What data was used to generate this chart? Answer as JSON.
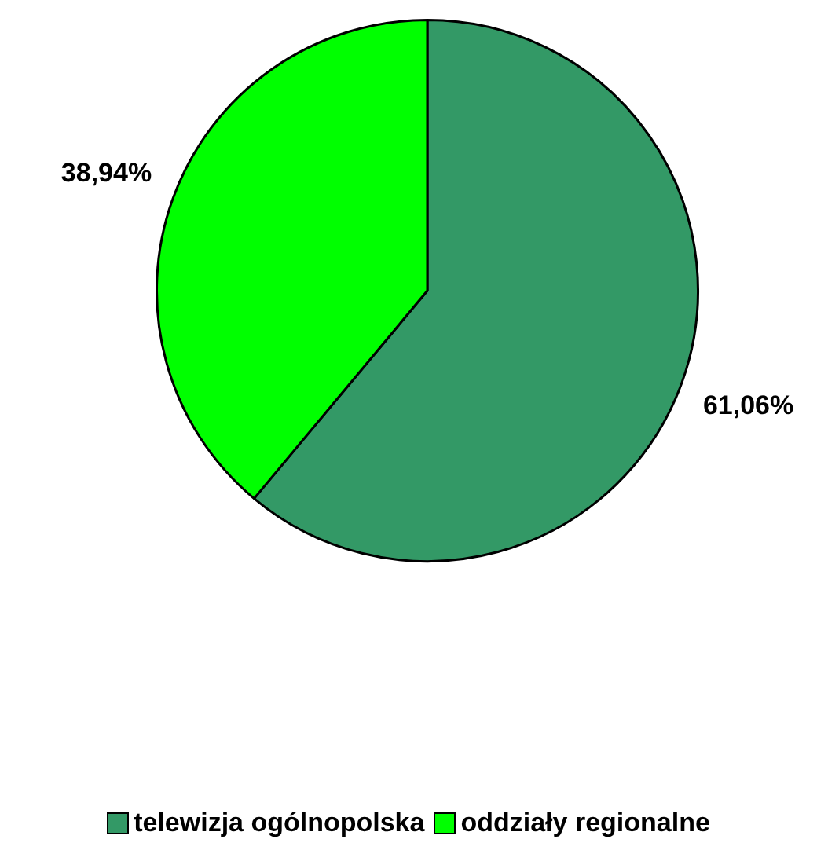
{
  "chart_data": {
    "type": "pie",
    "categories": [
      "telewizja ogólnopolska",
      "oddziały regionalne"
    ],
    "values": [
      61.06,
      38.94
    ],
    "colors": [
      "#339966",
      "#00ff00"
    ],
    "value_labels": [
      "61,06%",
      "38,94%"
    ],
    "legend": "bottom"
  }
}
